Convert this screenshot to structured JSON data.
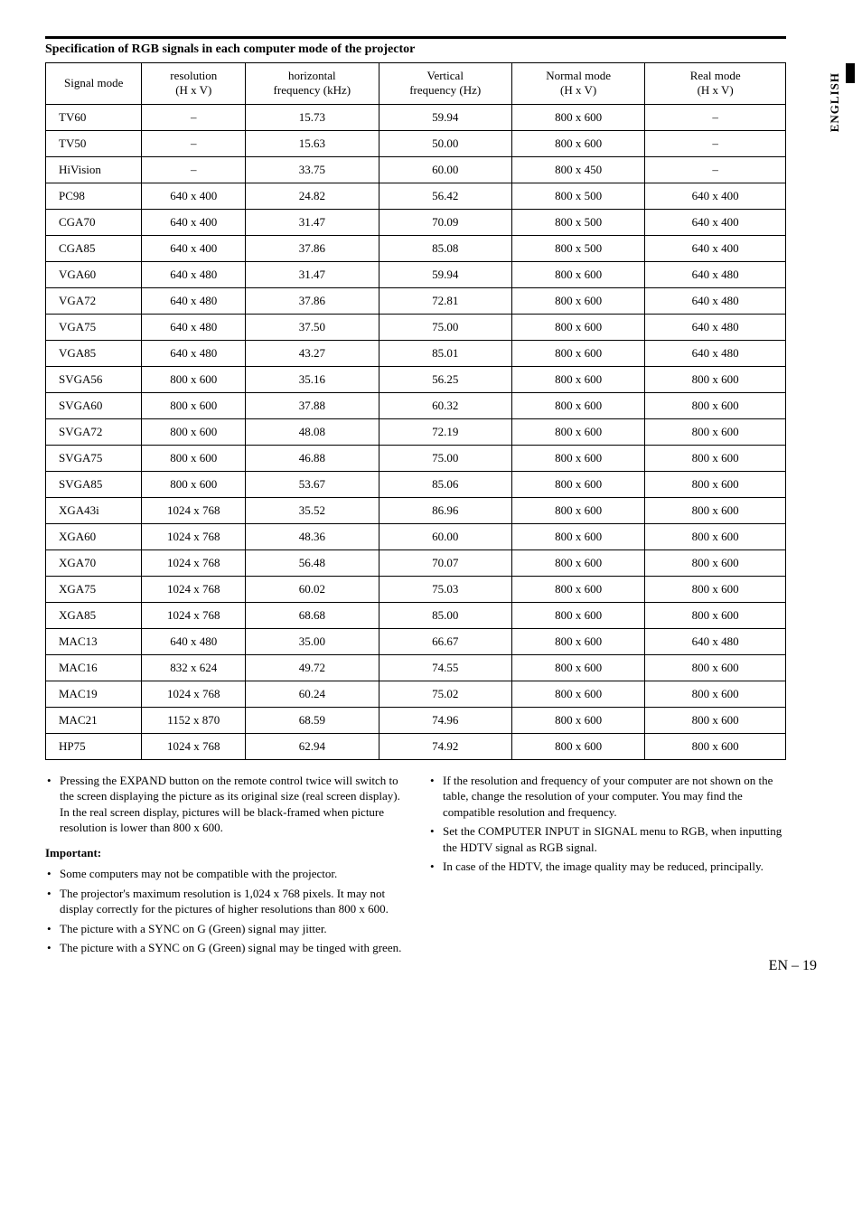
{
  "side_label": "ENGLISH",
  "section_title": "Specification of RGB signals in each computer mode of the projector",
  "table": {
    "columns": [
      {
        "l1": "Signal mode",
        "l2": ""
      },
      {
        "l1": "resolution",
        "l2": "(H x V)"
      },
      {
        "l1": "horizontal",
        "l2": "frequency (kHz)"
      },
      {
        "l1": "Vertical",
        "l2": "frequency (Hz)"
      },
      {
        "l1": "Normal mode",
        "l2": "(H x V)"
      },
      {
        "l1": "Real mode",
        "l2": "(H x V)"
      }
    ],
    "rows": [
      [
        "TV60",
        "–",
        "15.73",
        "59.94",
        "800 x 600",
        "–"
      ],
      [
        "TV50",
        "–",
        "15.63",
        "50.00",
        "800 x 600",
        "–"
      ],
      [
        "HiVision",
        "–",
        "33.75",
        "60.00",
        "800 x 450",
        "–"
      ],
      [
        "PC98",
        "640 x 400",
        "24.82",
        "56.42",
        "800 x 500",
        "640 x 400"
      ],
      [
        "CGA70",
        "640 x 400",
        "31.47",
        "70.09",
        "800 x 500",
        "640 x 400"
      ],
      [
        "CGA85",
        "640 x 400",
        "37.86",
        "85.08",
        "800 x 500",
        "640 x 400"
      ],
      [
        "VGA60",
        "640 x 480",
        "31.47",
        "59.94",
        "800 x 600",
        "640 x 480"
      ],
      [
        "VGA72",
        "640 x 480",
        "37.86",
        "72.81",
        "800 x 600",
        "640 x 480"
      ],
      [
        "VGA75",
        "640 x 480",
        "37.50",
        "75.00",
        "800 x 600",
        "640 x 480"
      ],
      [
        "VGA85",
        "640 x 480",
        "43.27",
        "85.01",
        "800 x 600",
        "640 x 480"
      ],
      [
        "SVGA56",
        "800 x 600",
        "35.16",
        "56.25",
        "800 x 600",
        "800 x 600"
      ],
      [
        "SVGA60",
        "800 x 600",
        "37.88",
        "60.32",
        "800 x 600",
        "800 x 600"
      ],
      [
        "SVGA72",
        "800 x 600",
        "48.08",
        "72.19",
        "800 x 600",
        "800 x 600"
      ],
      [
        "SVGA75",
        "800 x 600",
        "46.88",
        "75.00",
        "800 x 600",
        "800 x 600"
      ],
      [
        "SVGA85",
        "800 x 600",
        "53.67",
        "85.06",
        "800 x 600",
        "800 x 600"
      ],
      [
        "XGA43i",
        "1024 x 768",
        "35.52",
        "86.96",
        "800 x 600",
        "800 x 600"
      ],
      [
        "XGA60",
        "1024 x 768",
        "48.36",
        "60.00",
        "800 x 600",
        "800 x 600"
      ],
      [
        "XGA70",
        "1024 x 768",
        "56.48",
        "70.07",
        "800 x 600",
        "800 x 600"
      ],
      [
        "XGA75",
        "1024 x 768",
        "60.02",
        "75.03",
        "800 x 600",
        "800 x 600"
      ],
      [
        "XGA85",
        "1024 x 768",
        "68.68",
        "85.00",
        "800 x 600",
        "800 x 600"
      ],
      [
        "MAC13",
        "640 x 480",
        "35.00",
        "66.67",
        "800 x 600",
        "640 x 480"
      ],
      [
        "MAC16",
        "832 x 624",
        "49.72",
        "74.55",
        "800 x 600",
        "800 x 600"
      ],
      [
        "MAC19",
        "1024 x 768",
        "60.24",
        "75.02",
        "800 x 600",
        "800 x 600"
      ],
      [
        "MAC21",
        "1152 x 870",
        "68.59",
        "74.96",
        "800 x 600",
        "800 x 600"
      ],
      [
        "HP75",
        "1024 x 768",
        "62.94",
        "74.92",
        "800 x 600",
        "800 x 600"
      ]
    ]
  },
  "left_col": {
    "intro_bullet": "Pressing the EXPAND button on the remote control twice will switch to the screen displaying the picture as its original size (real screen display).  In the real screen display, pictures will be black-framed when picture resolution is lower than 800 x 600.",
    "important_label": "Important:",
    "bullets": [
      "Some computers may not be compatible with the projector.",
      "The projector's maximum resolution is 1,024 x 768 pixels.  It may not display correctly for the pictures of higher resolutions than 800 x 600.",
      "The picture with a SYNC on G (Green) signal may jitter.",
      "The picture with a SYNC on G (Green) signal may be tinged with green."
    ]
  },
  "right_col": {
    "bullets": [
      "If the resolution and frequency of your computer are not shown on the table, change the resolution of your computer. You may find the compatible resolution and frequency.",
      "Set the COMPUTER INPUT in SIGNAL menu to RGB, when inputting the HDTV signal as RGB signal.",
      "In case of the HDTV, the image quality may be reduced, principally."
    ]
  },
  "page_number": "EN – 19"
}
